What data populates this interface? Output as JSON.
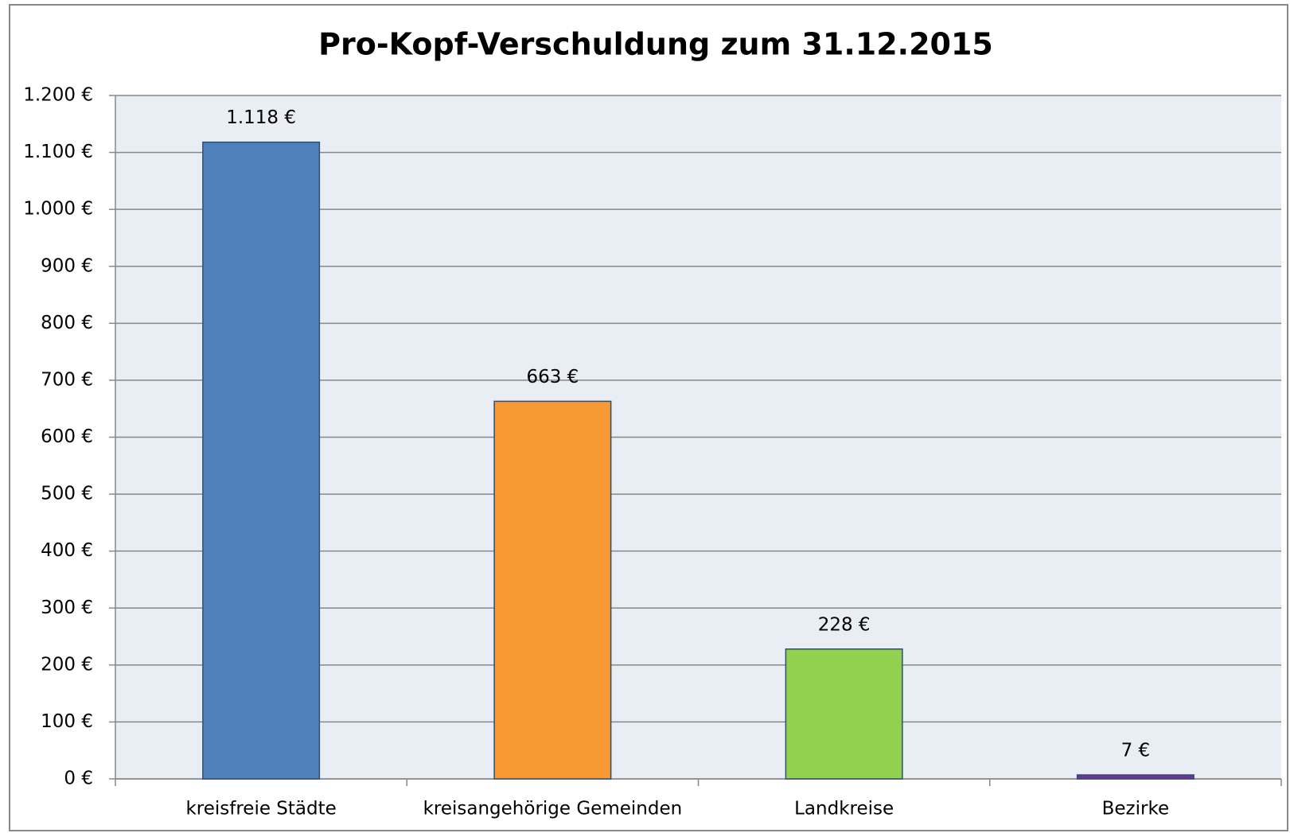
{
  "chart_data": {
    "type": "bar",
    "title": "Pro-Kopf-Verschuldung zum 31.12.2015",
    "categories": [
      "kreisfreie Städte",
      "kreisangehörige Gemeinden",
      "Landkreise",
      "Bezirke"
    ],
    "values": [
      1118,
      663,
      228,
      7
    ],
    "value_labels": [
      "1.118 €",
      "663 €",
      "228 €",
      "7 €"
    ],
    "colors": [
      "#4f81bd",
      "#f79a36",
      "#92d050",
      "#7030a0"
    ],
    "ylim": [
      0,
      1200
    ],
    "yticks": [
      {
        "value": 0,
        "label": "0 €"
      },
      {
        "value": 100,
        "label": "100 €"
      },
      {
        "value": 200,
        "label": "200 €"
      },
      {
        "value": 300,
        "label": "300 €"
      },
      {
        "value": 400,
        "label": "400 €"
      },
      {
        "value": 500,
        "label": "500 €"
      },
      {
        "value": 600,
        "label": "600 €"
      },
      {
        "value": 700,
        "label": "700 €"
      },
      {
        "value": 800,
        "label": "800 €"
      },
      {
        "value": 900,
        "label": "900 €"
      },
      {
        "value": 1000,
        "label": "1.000 €"
      },
      {
        "value": 1100,
        "label": "1.100 €"
      },
      {
        "value": 1200,
        "label": "1.200 €"
      }
    ],
    "grid": true
  }
}
